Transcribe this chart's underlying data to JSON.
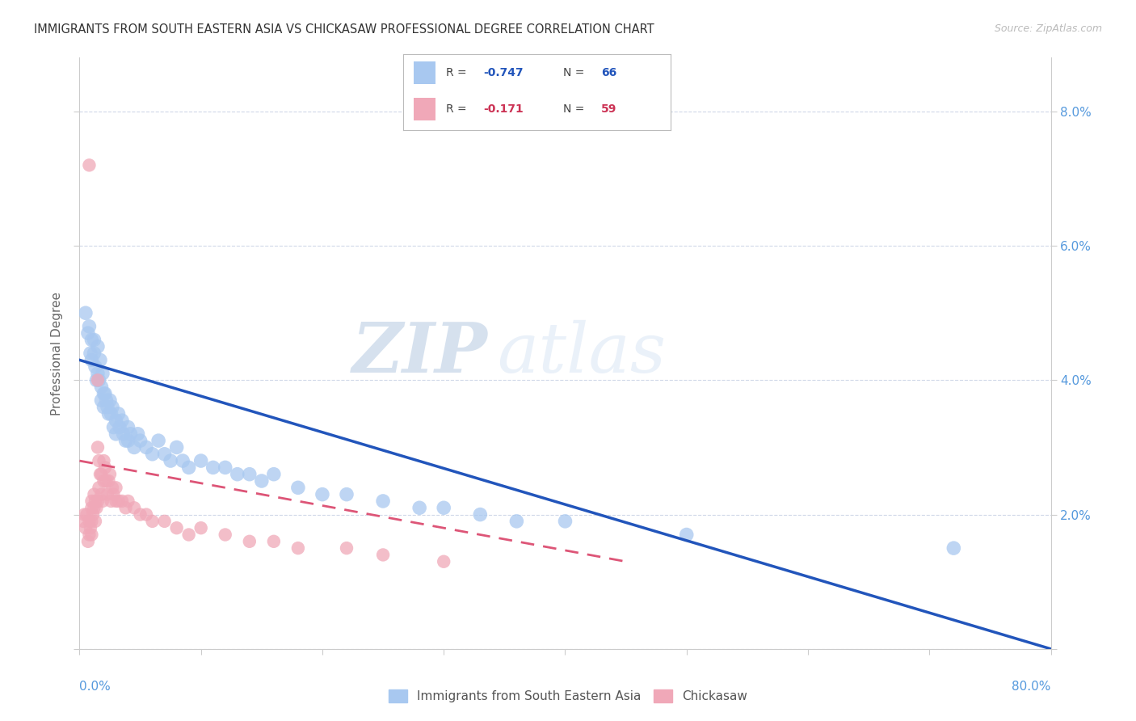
{
  "title": "IMMIGRANTS FROM SOUTH EASTERN ASIA VS CHICKASAW PROFESSIONAL DEGREE CORRELATION CHART",
  "source": "Source: ZipAtlas.com",
  "ylabel": "Professional Degree",
  "right_yticks": [
    0.0,
    0.02,
    0.04,
    0.06,
    0.08
  ],
  "right_yticklabels": [
    "",
    "2.0%",
    "4.0%",
    "6.0%",
    "8.0%"
  ],
  "xlim": [
    0.0,
    0.8
  ],
  "ylim": [
    0.0,
    0.088
  ],
  "legend_label1": "Immigrants from South Eastern Asia",
  "legend_label2": "Chickasaw",
  "watermark_zip": "ZIP",
  "watermark_atlas": "atlas",
  "title_color": "#333333",
  "source_color": "#aaaaaa",
  "blue_color": "#a8c8f0",
  "pink_color": "#f0a8b8",
  "axis_color": "#5599dd",
  "grid_color": "#d0d8e8",
  "blue_trendline_color": "#2255bb",
  "pink_trendline_color": "#dd5577",
  "blue_scatter": {
    "x": [
      0.005,
      0.007,
      0.008,
      0.009,
      0.01,
      0.01,
      0.012,
      0.012,
      0.013,
      0.014,
      0.015,
      0.015,
      0.016,
      0.017,
      0.018,
      0.018,
      0.019,
      0.02,
      0.02,
      0.021,
      0.022,
      0.023,
      0.024,
      0.025,
      0.026,
      0.027,
      0.028,
      0.03,
      0.03,
      0.032,
      0.033,
      0.035,
      0.036,
      0.038,
      0.04,
      0.04,
      0.042,
      0.045,
      0.048,
      0.05,
      0.055,
      0.06,
      0.065,
      0.07,
      0.075,
      0.08,
      0.085,
      0.09,
      0.1,
      0.11,
      0.12,
      0.13,
      0.14,
      0.15,
      0.16,
      0.18,
      0.2,
      0.22,
      0.25,
      0.28,
      0.3,
      0.33,
      0.36,
      0.4,
      0.5,
      0.72
    ],
    "y": [
      0.05,
      0.047,
      0.048,
      0.044,
      0.046,
      0.043,
      0.046,
      0.044,
      0.042,
      0.04,
      0.045,
      0.041,
      0.04,
      0.043,
      0.039,
      0.037,
      0.041,
      0.038,
      0.036,
      0.038,
      0.037,
      0.036,
      0.035,
      0.037,
      0.035,
      0.036,
      0.033,
      0.034,
      0.032,
      0.035,
      0.033,
      0.034,
      0.032,
      0.031,
      0.033,
      0.031,
      0.032,
      0.03,
      0.032,
      0.031,
      0.03,
      0.029,
      0.031,
      0.029,
      0.028,
      0.03,
      0.028,
      0.027,
      0.028,
      0.027,
      0.027,
      0.026,
      0.026,
      0.025,
      0.026,
      0.024,
      0.023,
      0.023,
      0.022,
      0.021,
      0.021,
      0.02,
      0.019,
      0.019,
      0.017,
      0.015
    ]
  },
  "pink_scatter": {
    "x": [
      0.003,
      0.004,
      0.005,
      0.006,
      0.007,
      0.008,
      0.008,
      0.009,
      0.01,
      0.01,
      0.01,
      0.01,
      0.011,
      0.012,
      0.012,
      0.013,
      0.013,
      0.014,
      0.015,
      0.015,
      0.015,
      0.016,
      0.016,
      0.017,
      0.018,
      0.018,
      0.019,
      0.02,
      0.02,
      0.021,
      0.022,
      0.023,
      0.024,
      0.025,
      0.026,
      0.027,
      0.028,
      0.03,
      0.03,
      0.032,
      0.035,
      0.038,
      0.04,
      0.045,
      0.05,
      0.055,
      0.06,
      0.07,
      0.08,
      0.09,
      0.1,
      0.12,
      0.14,
      0.16,
      0.18,
      0.22,
      0.25,
      0.3,
      0.008
    ],
    "y": [
      0.019,
      0.02,
      0.018,
      0.02,
      0.016,
      0.019,
      0.017,
      0.018,
      0.022,
      0.021,
      0.019,
      0.017,
      0.02,
      0.023,
      0.021,
      0.022,
      0.019,
      0.021,
      0.04,
      0.03,
      0.022,
      0.028,
      0.024,
      0.026,
      0.026,
      0.023,
      0.022,
      0.028,
      0.025,
      0.027,
      0.025,
      0.023,
      0.025,
      0.026,
      0.022,
      0.024,
      0.023,
      0.024,
      0.022,
      0.022,
      0.022,
      0.021,
      0.022,
      0.021,
      0.02,
      0.02,
      0.019,
      0.019,
      0.018,
      0.017,
      0.018,
      0.017,
      0.016,
      0.016,
      0.015,
      0.015,
      0.014,
      0.013,
      0.072
    ]
  },
  "blue_trendline": {
    "x": [
      0.0,
      0.8
    ],
    "y": [
      0.043,
      0.0
    ]
  },
  "pink_trendline": {
    "x": [
      0.0,
      0.45
    ],
    "y": [
      0.028,
      0.013
    ]
  }
}
